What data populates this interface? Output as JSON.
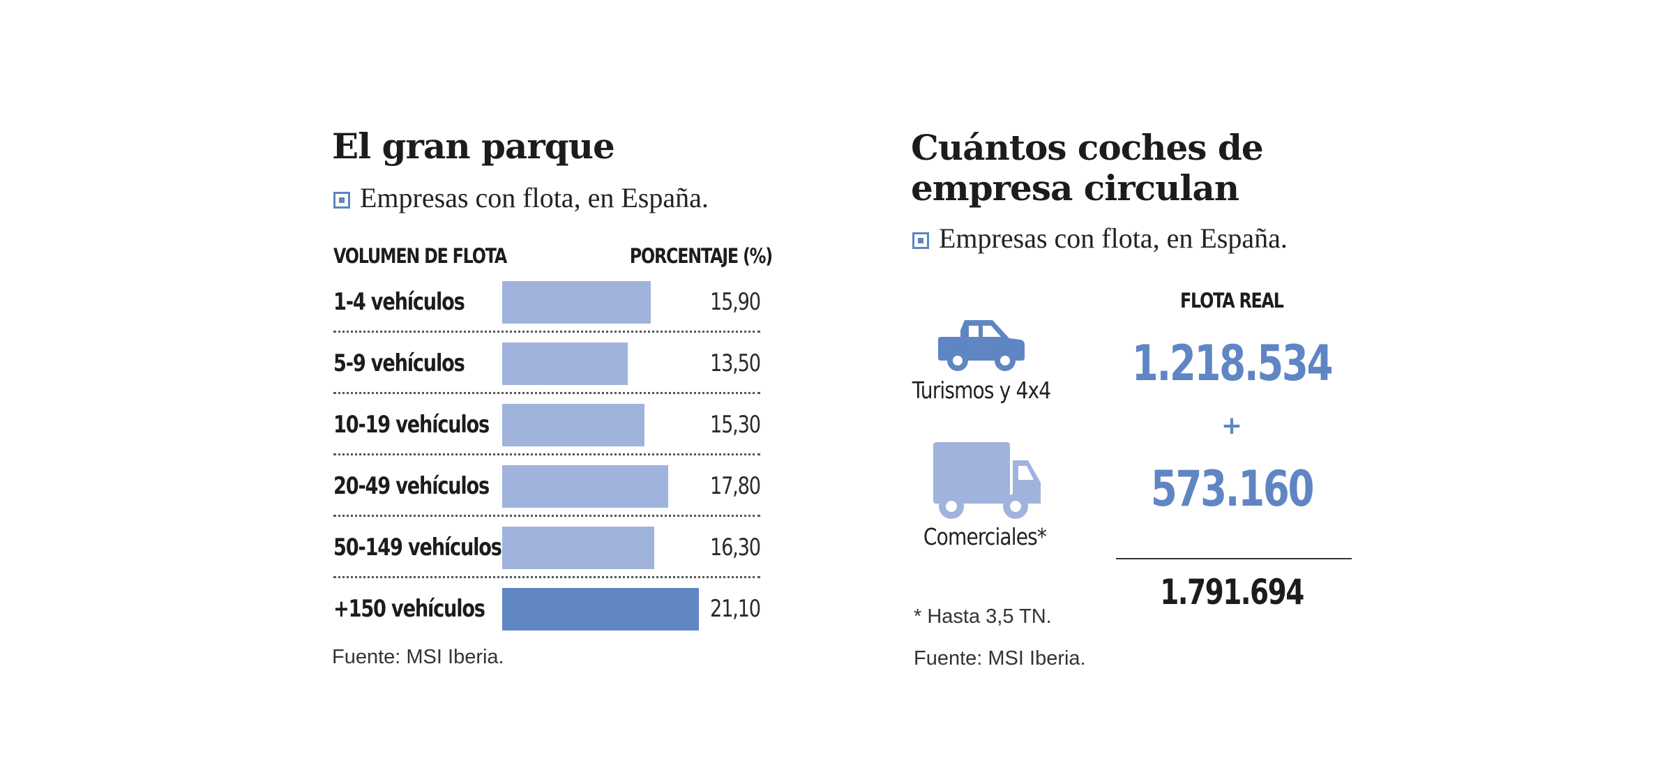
{
  "left": {
    "title": "El gran parque",
    "subtitle": "Empresas con flota, en España.",
    "col_left": "VOLUMEN DE FLOTA",
    "col_right": "PORCENTAJE (%)",
    "source": "Fuente: MSI Iberia."
  },
  "chart_data": {
    "type": "bar",
    "orientation": "horizontal",
    "categories": [
      "1-4 vehículos",
      "5-9 vehículos",
      "10-19 vehículos",
      "20-49 vehículos",
      "50-149 vehículos",
      "+150 vehículos"
    ],
    "values": [
      15.9,
      13.5,
      15.3,
      17.8,
      16.3,
      21.1
    ],
    "value_labels": [
      "15,90",
      "13,50",
      "15,30",
      "17,80",
      "16,30",
      "21,10"
    ],
    "title": "El gran parque",
    "subtitle": "Empresas con flota, en España.",
    "xlabel": "PORCENTAJE (%)",
    "ylabel": "VOLUMEN DE FLOTA",
    "grid": false,
    "colors": {
      "bar": "#a0b3dc",
      "highlight": "#5f85c3"
    },
    "highlight_index": 5
  },
  "right": {
    "title_line1": "Cuántos coches de",
    "title_line2": "empresa circulan",
    "subtitle": "Empresas con flota, en España.",
    "header": "FLOTA REAL",
    "items": [
      {
        "label": "Turismos y 4x4",
        "value": "1.218.534",
        "icon": "car-icon",
        "color": "#5f85c3"
      },
      {
        "label": "Comerciales*",
        "value": "573.160",
        "icon": "truck-icon",
        "color": "#a0b3dc"
      }
    ],
    "plus": "+",
    "total": "1.791.694",
    "footnote": "* Hasta 3,5 TN.",
    "source": "Fuente: MSI Iberia."
  }
}
